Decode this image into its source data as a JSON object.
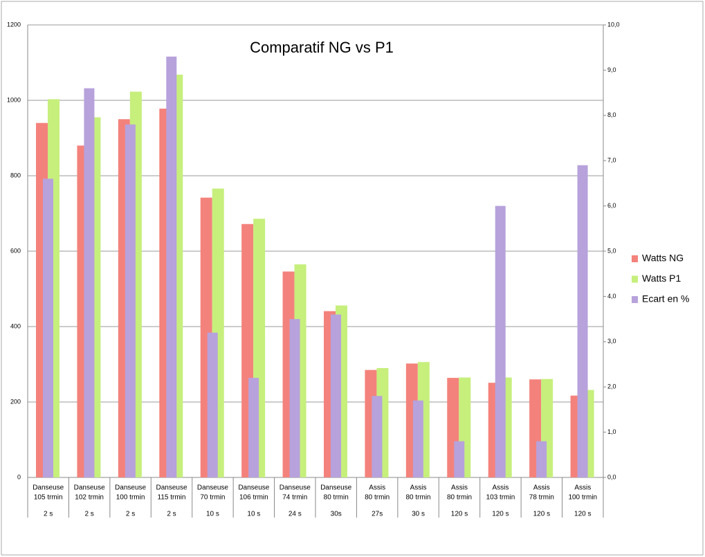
{
  "chart_data": {
    "type": "bar",
    "title": "Comparatif NG vs P1",
    "categories": [
      [
        "Danseuse",
        "105 trmin"
      ],
      [
        "Danseuse",
        "102 trmin"
      ],
      [
        "Danseuse",
        "100 trmin"
      ],
      [
        "Danseuse",
        "115 trmin"
      ],
      [
        "Danseuse",
        "70 trmin"
      ],
      [
        "Danseuse",
        "106 trmin"
      ],
      [
        "Danseuse",
        "74 trmin"
      ],
      [
        "Danseuse",
        "80 trmin"
      ],
      [
        "Assis",
        "80  trmin"
      ],
      [
        "Assis",
        "80  trmin"
      ],
      [
        "Assis",
        "80  trmin"
      ],
      [
        "Assis",
        "103 trmin"
      ],
      [
        "Assis",
        "78 trmin"
      ],
      [
        "Assis",
        "100 trmin"
      ]
    ],
    "durations": [
      "2 s",
      "2 s",
      "2 s",
      "2 s",
      "10 s",
      "10 s",
      "24 s",
      "30s",
      "27s",
      "30 s",
      "120 s",
      "120 s",
      "120 s",
      "120 s"
    ],
    "series": [
      {
        "name": "Watts NG",
        "color": "#f4827c",
        "values": [
          940,
          880,
          950,
          978,
          742,
          672,
          546,
          441,
          285,
          302,
          264,
          251,
          260,
          217
        ]
      },
      {
        "name": "Watts P1",
        "color": "#c6ef7c",
        "values": [
          1003,
          955,
          1023,
          1068,
          766,
          686,
          565,
          456,
          290,
          306,
          265,
          265,
          261,
          232
        ]
      },
      {
        "name": "Ecart en %",
        "color": "#b7a2dc",
        "axis": "y2",
        "values": [
          6.6,
          8.6,
          7.8,
          9.3,
          3.2,
          2.2,
          3.5,
          3.6,
          1.8,
          1.7,
          0.8,
          6.0,
          0.8,
          6.9
        ]
      }
    ],
    "ylim": [
      0,
      1200
    ],
    "yticks": [
      0,
      200,
      400,
      600,
      800,
      1000,
      1200
    ],
    "y2lim": [
      0,
      10
    ],
    "y2ticks": [
      {
        "value": 0,
        "label": "0,0"
      },
      {
        "value": 1,
        "label": "1,0"
      },
      {
        "value": 2,
        "label": "2,0"
      },
      {
        "value": 3,
        "label": "3,0"
      },
      {
        "value": 4,
        "label": "4,0"
      },
      {
        "value": 5,
        "label": "5,0"
      },
      {
        "value": 6,
        "label": "6,0"
      },
      {
        "value": 7,
        "label": "7,0"
      },
      {
        "value": 8,
        "label": "8,0"
      },
      {
        "value": 9,
        "label": "9,0"
      },
      {
        "value": 10,
        "label": "10,0"
      }
    ],
    "grid": true,
    "legend": "right"
  }
}
